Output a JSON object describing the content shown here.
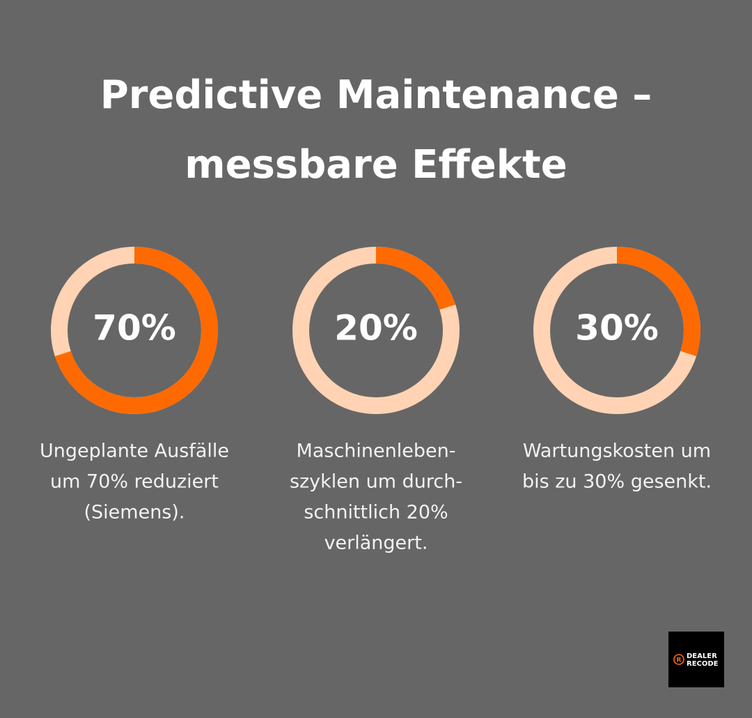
{
  "title": [
    "Predictive Maintenance –",
    "messbare Effekte"
  ],
  "chart_data": [
    {
      "type": "donut",
      "values": [
        70
      ],
      "value_labels": [
        "70%"
      ],
      "color": "#ff6a00",
      "track_color": "#ffd3b3",
      "caption": [
        "Ungeplante Ausfälle",
        "um 70% reduziert",
        "(Siemens)."
      ]
    },
    {
      "type": "donut",
      "values": [
        20
      ],
      "value_labels": [
        "20%"
      ],
      "color": "#ff6a00",
      "track_color": "#ffd3b3",
      "caption": [
        "Maschinenleben-",
        "szyklen um durch-",
        "schnittlich 20%",
        "verlängert."
      ]
    },
    {
      "type": "donut",
      "values": [
        30
      ],
      "value_labels": [
        "30%"
      ],
      "color": "#ff6a00",
      "track_color": "#ffd3b3",
      "caption": [
        "Wartungskosten um",
        "bis zu 30% gesenkt."
      ]
    }
  ],
  "logo": [
    "DEALER",
    "RECODE"
  ]
}
